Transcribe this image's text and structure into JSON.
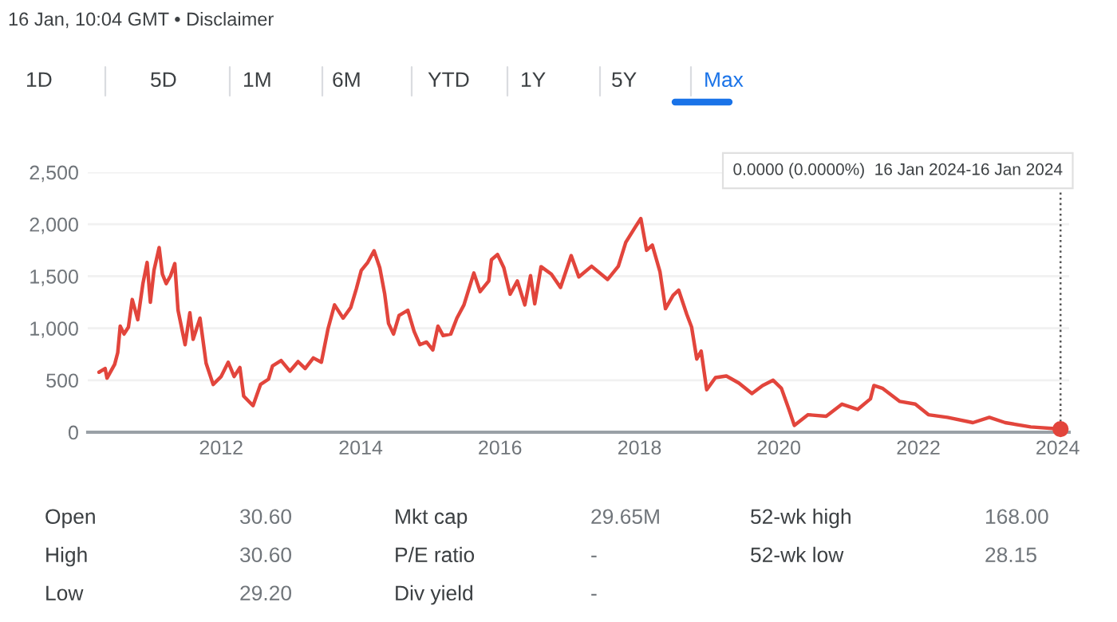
{
  "chart_data": {
    "type": "line",
    "annotations": [
      "16 Jan, 10:04 GMT • Disclaimer",
      "1D",
      "5D",
      "1M",
      "6M",
      "YTD",
      "1Y",
      "5Y",
      "Max",
      "0.0000 (0.0000%)  16 Jan 2024-16 Jan 2024",
      "Open",
      "30.60",
      "Mkt cap",
      "29.65M",
      "52-wk high",
      "168.00",
      "High",
      "30.60",
      "P/E ratio",
      "-",
      "52-wk low",
      "28.15",
      "Low",
      "29.20",
      "Div yield",
      "-"
    ],
    "series": [
      {
        "color": "#e2453c",
        "x": [
          "2010-04-01",
          "2010-05-03",
          "2010-05-13",
          "2010-06-22",
          "2010-07-08",
          "2010-07-21",
          "2010-08-10",
          "2010-09-02",
          "2010-09-22",
          "2010-10-21",
          "2010-11-17",
          "2010-12-09",
          "2010-12-26",
          "2011-01-14",
          "2011-02-10",
          "2011-02-27",
          "2011-03-19",
          "2011-04-11",
          "2011-05-03",
          "2011-05-20",
          "2011-06-26",
          "2011-07-21",
          "2011-08-07",
          "2011-09-12",
          "2011-10-14",
          "2011-11-20",
          "2012-01-01",
          "2012-02-07",
          "2012-03-09",
          "2012-04-08",
          "2012-04-28",
          "2012-06-16",
          "2012-07-25",
          "2012-09-05",
          "2012-09-26",
          "2012-11-10",
          "2012-12-26",
          "2013-02-07",
          "2013-03-16",
          "2013-04-28",
          "2013-06-09",
          "2013-07-14",
          "2013-08-17",
          "2013-10-01",
          "2013-11-10",
          "2013-12-09",
          "2014-01-04",
          "2014-02-07",
          "2014-03-12",
          "2014-04-11",
          "2014-05-07",
          "2014-05-27",
          "2014-06-22",
          "2014-07-21",
          "2014-09-05",
          "2014-10-08",
          "2014-11-07",
          "2014-12-12",
          "2015-01-14",
          "2015-02-10",
          "2015-03-09",
          "2015-04-18",
          "2015-05-20",
          "2015-06-26",
          "2015-08-17",
          "2015-09-19",
          "2015-11-03",
          "2015-11-17",
          "2015-12-19",
          "2016-01-21",
          "2016-02-23",
          "2016-04-01",
          "2016-05-10",
          "2016-06-09",
          "2016-07-01",
          "2016-08-03",
          "2016-09-26",
          "2016-11-13",
          "2017-01-08",
          "2017-02-17",
          "2017-04-25",
          "2017-07-18",
          "2017-09-12",
          "2017-10-21",
          "2017-12-12",
          "2018-01-08",
          "2018-02-07",
          "2018-03-09",
          "2018-04-18",
          "2018-05-17",
          "2018-06-26",
          "2018-07-25",
          "2018-09-05",
          "2018-10-01",
          "2018-10-28",
          "2018-11-20",
          "2018-12-19",
          "2019-02-03",
          "2019-04-01",
          "2019-06-05",
          "2019-08-13",
          "2019-10-08",
          "2019-12-02",
          "2020-01-14",
          "2020-02-23",
          "2020-03-22",
          "2020-06-02",
          "2020-09-05",
          "2020-11-27",
          "2021-02-17",
          "2021-04-25",
          "2021-05-13",
          "2021-06-26",
          "2021-09-26",
          "2021-12-16",
          "2022-02-23",
          "2022-06-02",
          "2022-10-14",
          "2023-01-08",
          "2023-04-01",
          "2023-08-13",
          "2024-01-16"
        ],
        "values": [
          577,
          612,
          520,
          653,
          765,
          1020,
          944,
          1010,
          1276,
          1082,
          1429,
          1633,
          1250,
          1556,
          1776,
          1520,
          1429,
          1505,
          1622,
          1173,
          842,
          1148,
          893,
          1097,
          663,
          459,
          536,
          673,
          536,
          622,
          347,
          255,
          459,
          510,
          638,
          689,
          587,
          679,
          612,
          714,
          673,
          995,
          1224,
          1097,
          1199,
          1378,
          1556,
          1633,
          1745,
          1582,
          1327,
          1046,
          944,
          1122,
          1173,
          969,
          842,
          867,
          791,
          1020,
          929,
          944,
          1097,
          1224,
          1531,
          1352,
          1454,
          1658,
          1709,
          1582,
          1327,
          1454,
          1224,
          1505,
          1235,
          1592,
          1520,
          1392,
          1698,
          1494,
          1596,
          1469,
          1596,
          1826,
          1979,
          2055,
          1749,
          1800,
          1545,
          1188,
          1316,
          1367,
          1137,
          1010,
          704,
          780,
          408,
          525,
          541,
          474,
          372,
          449,
          500,
          423,
          219,
          66,
          168,
          153,
          270,
          219,
          321,
          449,
          423,
          296,
          270,
          168,
          143,
          92,
          143,
          92,
          51,
          30
        ]
      },
      {
        "type": "scatter",
        "color": "#e2453c",
        "marker": "circle",
        "x": [
          "2024-01-16"
        ],
        "values": [
          30
        ]
      }
    ],
    "xlim": [
      "2010-02-01",
      "2024-03-01"
    ],
    "xticks": [
      "2012",
      "2014",
      "2016",
      "2018",
      "2020",
      "2022",
      "2024"
    ],
    "ylim": [
      0,
      2500
    ],
    "yticks": [
      {
        "value": 0,
        "label": "0"
      },
      {
        "value": 500,
        "label": "500"
      },
      {
        "value": 1000,
        "label": "1,000"
      },
      {
        "value": 1500,
        "label": "1,500"
      },
      {
        "value": 2000,
        "label": "2,000"
      },
      {
        "value": 2500,
        "label": "2,500"
      }
    ],
    "grid": "y",
    "ref_lines": [
      {
        "axis": "x",
        "value": "2024-01-16",
        "color": "#555555",
        "line_style": "dotted"
      }
    ]
  }
}
